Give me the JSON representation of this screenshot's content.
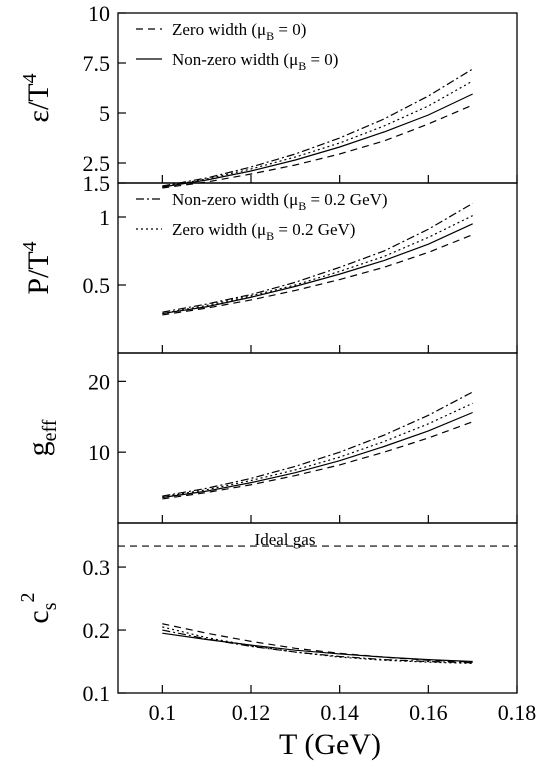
{
  "chart_data": {
    "type": "line",
    "xlabel": "T (GeV)",
    "xlim": [
      0.09,
      0.18
    ],
    "xticks": [
      "0.1",
      "0.12",
      "0.14",
      "0.16",
      "0.18"
    ],
    "grid": false,
    "series_styles": [
      {
        "name": "Zero width (μB = 0)",
        "dash": "dashed"
      },
      {
        "name": "Non-zero width (μB = 0)",
        "dash": "solid"
      },
      {
        "name": "Non-zero width (μB = 0.2 GeV)",
        "dash": "dash-dot"
      },
      {
        "name": "Zero width (μB = 0.2 GeV)",
        "dash": "dotted"
      }
    ],
    "panels": [
      {
        "id": "energy",
        "ylabel_main": "ε/T",
        "ylabel_sup": "4",
        "ylim": [
          1.5,
          10
        ],
        "yticks": [
          "1.5",
          "2.5",
          "5",
          "7.5",
          "10"
        ],
        "legend_position": "top-left",
        "legend": [
          {
            "dash": "dashed",
            "label": "Zero width (μ",
            "sub": "B",
            "tail": " = 0)"
          },
          {
            "dash": "solid",
            "label": "Non-zero width (μ",
            "sub": "B",
            "tail": " = 0)"
          }
        ],
        "x": [
          0.1,
          0.11,
          0.12,
          0.13,
          0.14,
          0.15,
          0.16,
          0.17
        ],
        "series": [
          {
            "dash": "dashed",
            "values": [
              1.25,
              1.55,
              1.95,
              2.4,
              2.95,
              3.6,
              4.45,
              5.4
            ]
          },
          {
            "dash": "solid",
            "values": [
              1.3,
              1.65,
              2.1,
              2.65,
              3.3,
              4.05,
              4.9,
              5.95
            ]
          },
          {
            "dash": "dotted",
            "values": [
              1.32,
              1.7,
              2.2,
              2.8,
              3.5,
              4.35,
              5.35,
              6.6
            ]
          },
          {
            "dash": "dash-dot",
            "values": [
              1.35,
              1.75,
              2.3,
              2.95,
              3.75,
              4.7,
              5.85,
              7.2
            ]
          }
        ]
      },
      {
        "id": "pressure",
        "ylabel_main": "P/T",
        "ylabel_sup": "4",
        "ylim": [
          0.0,
          1.25
        ],
        "yticks": [
          "0.5",
          "1"
        ],
        "legend_position": "top-left",
        "legend": [
          {
            "dash": "dash-dot",
            "label": "Non-zero width (μ",
            "sub": "B",
            "tail": " = 0.2 GeV)"
          },
          {
            "dash": "dotted",
            "label": "Zero width (μ",
            "sub": "B",
            "tail": " = 0.2 GeV)"
          }
        ],
        "x": [
          0.1,
          0.11,
          0.12,
          0.13,
          0.14,
          0.15,
          0.16,
          0.17
        ],
        "series": [
          {
            "dash": "dashed",
            "values": [
              0.28,
              0.33,
              0.39,
              0.46,
              0.54,
              0.63,
              0.74,
              0.87
            ]
          },
          {
            "dash": "solid",
            "values": [
              0.29,
              0.34,
              0.41,
              0.49,
              0.58,
              0.68,
              0.8,
              0.95
            ]
          },
          {
            "dash": "dotted",
            "values": [
              0.29,
              0.35,
              0.42,
              0.5,
              0.6,
              0.71,
              0.85,
              1.01
            ]
          },
          {
            "dash": "dash-dot",
            "values": [
              0.3,
              0.36,
              0.43,
              0.52,
              0.63,
              0.75,
              0.91,
              1.1
            ]
          }
        ]
      },
      {
        "id": "geff",
        "ylabel_main": "g",
        "ylabel_sub": "eff",
        "ylim": [
          0,
          24
        ],
        "yticks": [
          "10",
          "20"
        ],
        "x": [
          0.1,
          0.11,
          0.12,
          0.13,
          0.14,
          0.15,
          0.16,
          0.17
        ],
        "series": [
          {
            "dash": "dashed",
            "values": [
              3.4,
              4.3,
              5.4,
              6.7,
              8.2,
              10.0,
              12.0,
              14.3
            ]
          },
          {
            "dash": "solid",
            "values": [
              3.6,
              4.5,
              5.7,
              7.1,
              8.8,
              10.8,
              13.0,
              15.6
            ]
          },
          {
            "dash": "dotted",
            "values": [
              3.7,
              4.7,
              6.0,
              7.5,
              9.3,
              11.5,
              14.0,
              16.9
            ]
          },
          {
            "dash": "dash-dot",
            "values": [
              3.8,
              4.9,
              6.3,
              8.0,
              10.0,
              12.4,
              15.2,
              18.5
            ]
          }
        ]
      },
      {
        "id": "cs2",
        "ylabel_main": "c",
        "ylabel_sub": "s",
        "ylabel_sup": "2",
        "ylim": [
          0.1,
          0.37
        ],
        "yticks": [
          "0.1",
          "0.2",
          "0.3"
        ],
        "annotation": "Ideal gas",
        "reference_line": {
          "y": 0.3333,
          "dash": "dashed"
        },
        "x": [
          0.1,
          0.11,
          0.12,
          0.13,
          0.14,
          0.15,
          0.16,
          0.17
        ],
        "series": [
          {
            "dash": "dashed",
            "values": [
              0.21,
              0.195,
              0.182,
              0.171,
              0.163,
              0.157,
              0.152,
              0.149
            ]
          },
          {
            "dash": "solid",
            "values": [
              0.195,
              0.185,
              0.176,
              0.168,
              0.162,
              0.157,
              0.153,
              0.15
            ]
          },
          {
            "dash": "dotted",
            "values": [
              0.205,
              0.188,
              0.175,
              0.165,
              0.157,
              0.152,
              0.149,
              0.147
            ]
          },
          {
            "dash": "dash-dot",
            "values": [
              0.2,
              0.186,
              0.174,
              0.165,
              0.158,
              0.153,
              0.15,
              0.148
            ]
          }
        ]
      }
    ]
  }
}
